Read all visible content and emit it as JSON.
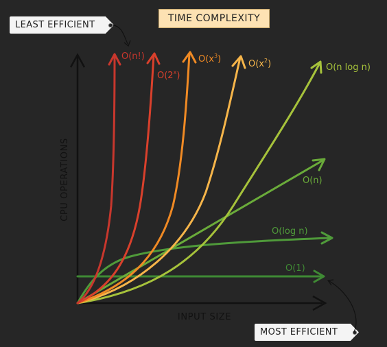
{
  "title": "TIME COMPLEXITY",
  "least_label": "LEAST EFFICIENT",
  "most_label": "MOST EFFICIENT",
  "xlabel": "INPUT SIZE",
  "ylabel": "CPU OPERATIONS",
  "colors": {
    "factorial": "#c8372d",
    "exponential": "#d9402c",
    "cubic": "#f08a24",
    "quadratic": "#f6b54a",
    "nlogn": "#a6c23b",
    "linear": "#6aab3a",
    "log": "#4f9a3a",
    "constant": "#3f8a34",
    "axis": "#111111",
    "title_bg": "#fde2b3"
  },
  "curves": [
    {
      "key": "factorial",
      "label": "O(n!)"
    },
    {
      "key": "exponential",
      "label": "O(2",
      "sup": "x",
      "suffix": ")"
    },
    {
      "key": "cubic",
      "label": "O(x",
      "sup": "3",
      "suffix": ")"
    },
    {
      "key": "quadratic",
      "label": "O(x",
      "sup": "2",
      "suffix": ")"
    },
    {
      "key": "nlogn",
      "label": "O(n log n)"
    },
    {
      "key": "linear",
      "label": "O(n)"
    },
    {
      "key": "log",
      "label": "O(log n)"
    },
    {
      "key": "constant",
      "label": "O(1)"
    }
  ]
}
